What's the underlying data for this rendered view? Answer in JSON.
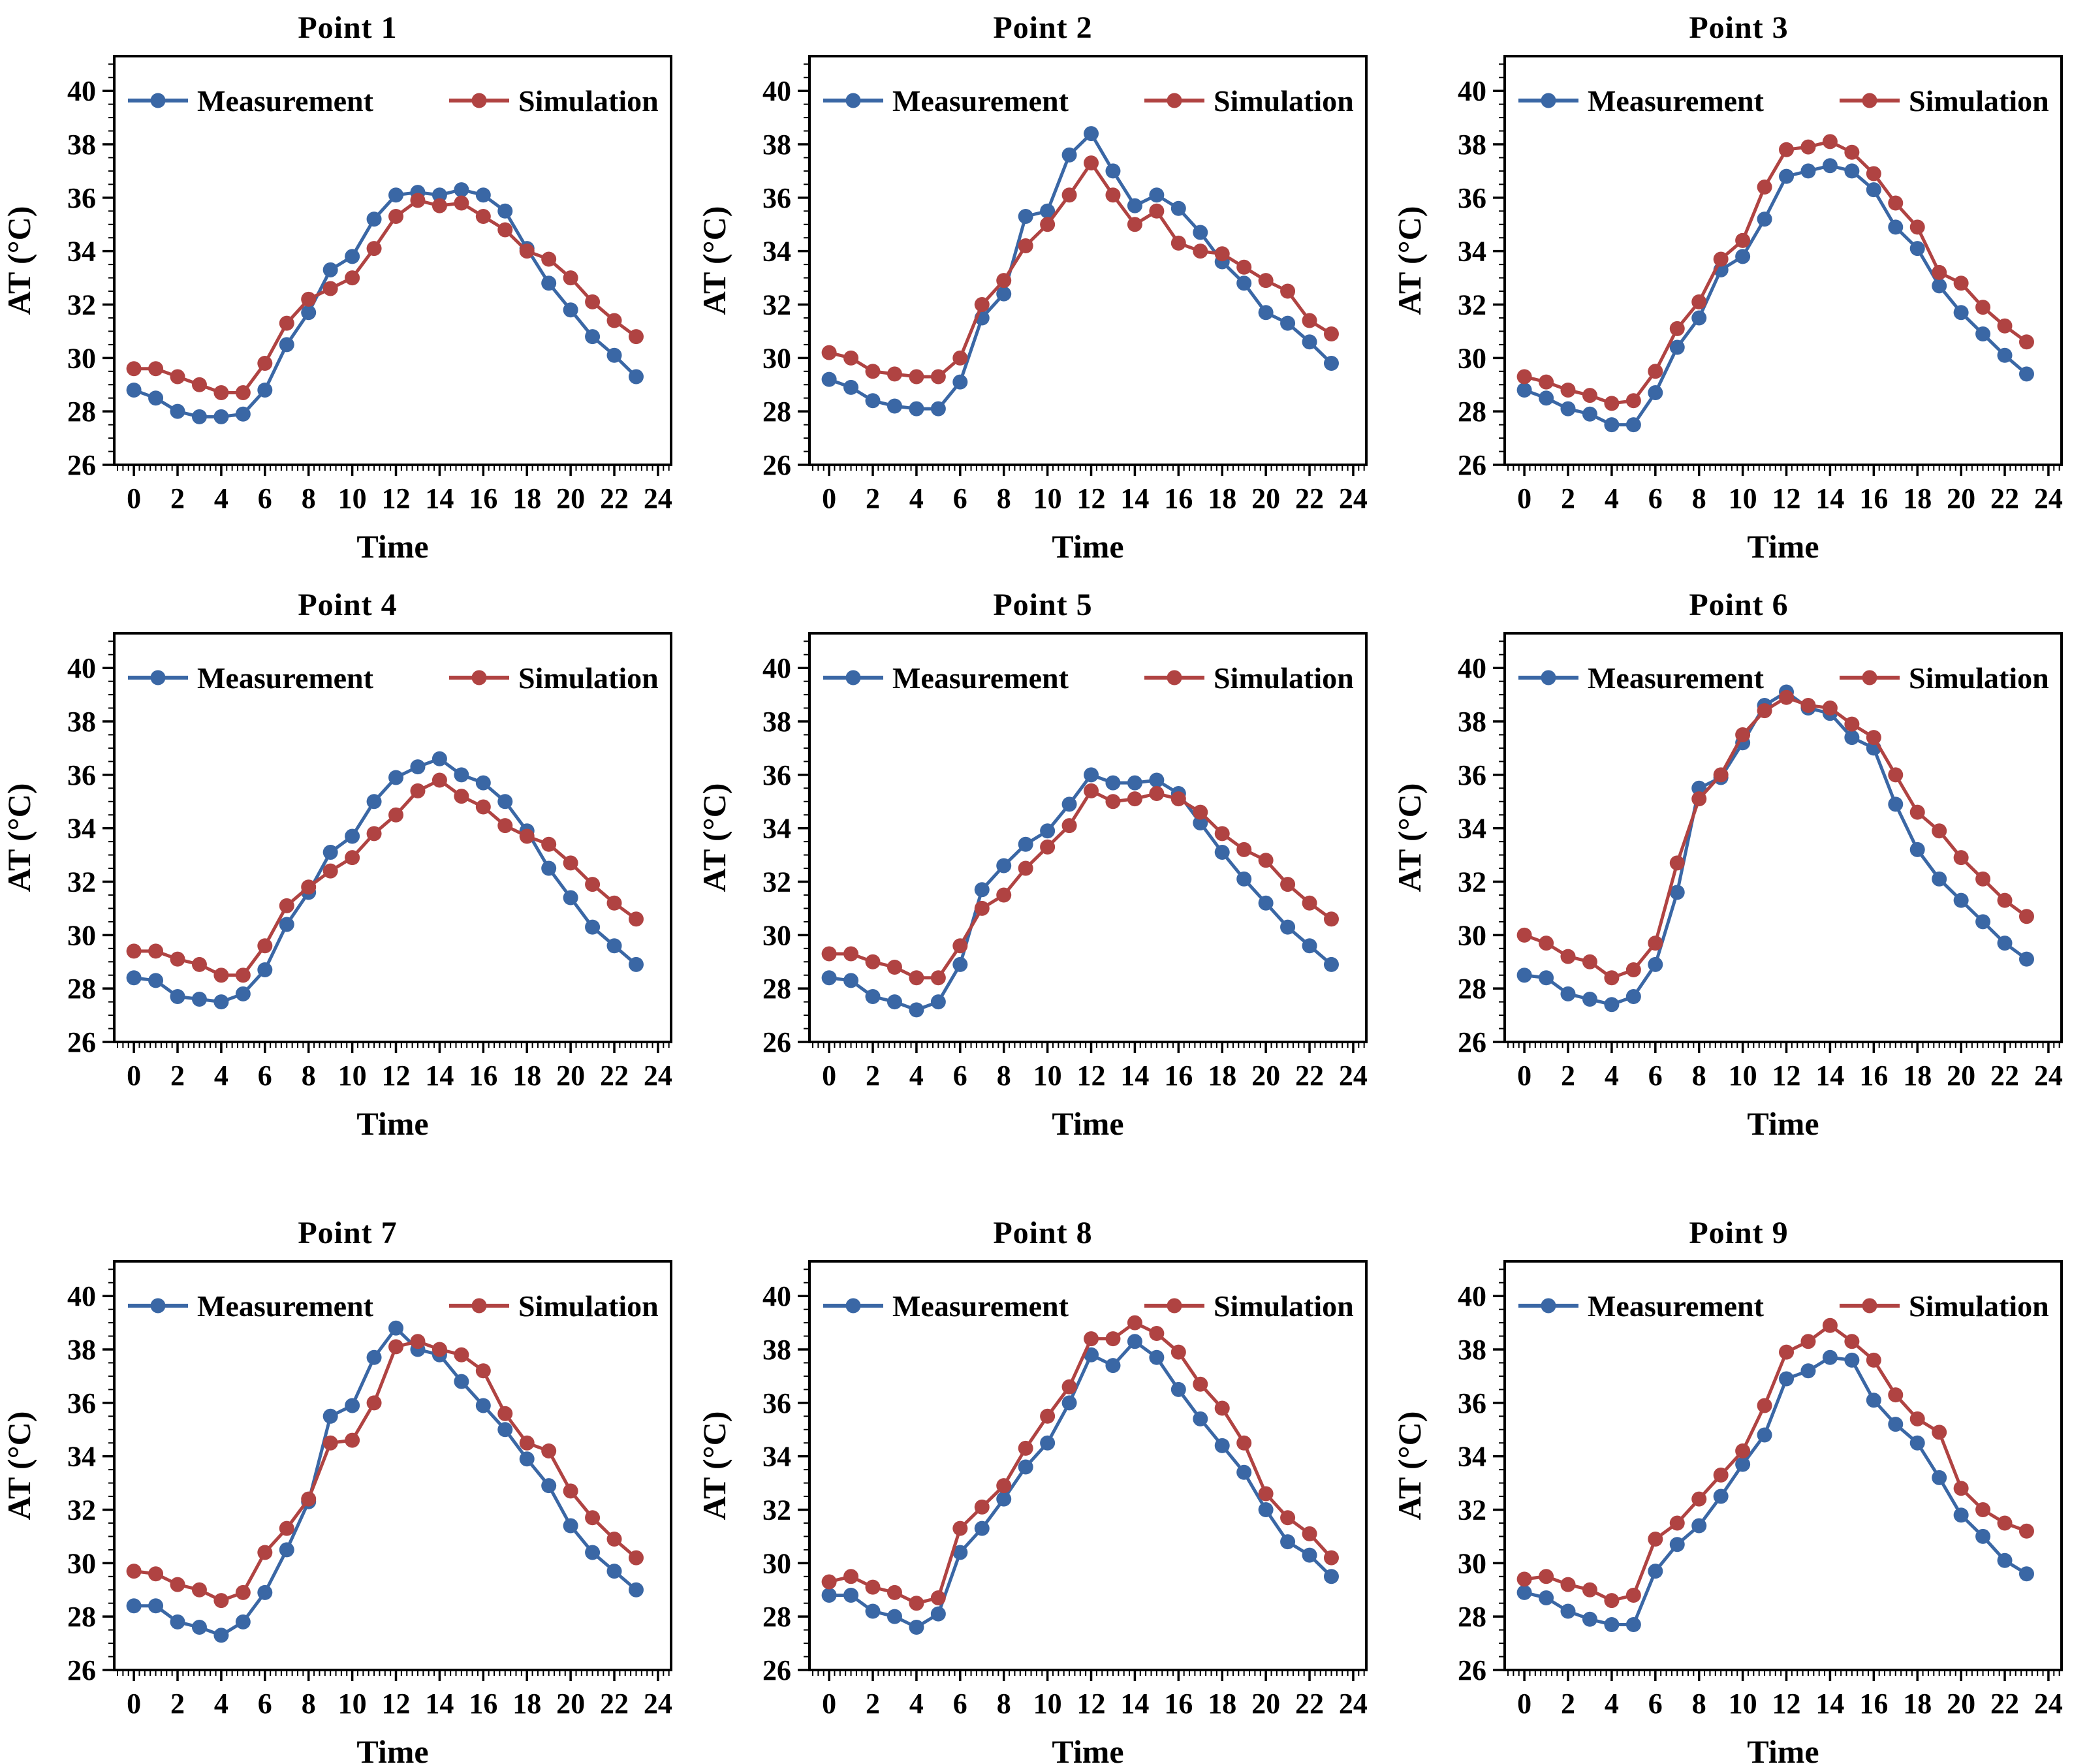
{
  "page": {
    "background": "#ffffff"
  },
  "legend": {
    "items": [
      {
        "label": "Measurement",
        "color": "#3a67a5"
      },
      {
        "label": "Simulation",
        "color": "#b04342"
      }
    ]
  },
  "axes": {
    "xlabel": "Time",
    "ylabel": "AT (°C)",
    "xticks": [
      0,
      2,
      4,
      6,
      8,
      10,
      12,
      14,
      16,
      18,
      20,
      22,
      24
    ],
    "yticks": [
      26,
      28,
      30,
      32,
      34,
      36,
      38,
      40
    ],
    "xlim": [
      -0.9,
      24.6
    ],
    "ylim": [
      26,
      41.3
    ],
    "x_minor_step": 0.25,
    "y_minor_step": 0.5,
    "x_values": [
      0,
      1,
      2,
      3,
      4,
      5,
      6,
      7,
      8,
      9,
      10,
      11,
      12,
      13,
      14,
      15,
      16,
      17,
      18,
      19,
      20,
      21,
      22,
      23
    ],
    "grid": false,
    "legend_position": "top-inside"
  },
  "chart_data": [
    {
      "type": "line",
      "title": "Point 1",
      "xlabel": "Time",
      "ylabel": "AT (°C)",
      "series": [
        {
          "name": "Measurement",
          "color": "#3a67a5",
          "values": [
            28.8,
            28.5,
            28.0,
            27.8,
            27.8,
            27.9,
            28.8,
            30.5,
            31.7,
            33.3,
            33.8,
            35.2,
            36.1,
            36.2,
            36.1,
            36.3,
            36.1,
            35.5,
            34.1,
            32.8,
            31.8,
            30.8,
            30.1,
            29.3
          ]
        },
        {
          "name": "Simulation",
          "color": "#b04342",
          "values": [
            29.6,
            29.6,
            29.3,
            29.0,
            28.7,
            28.7,
            29.8,
            31.3,
            32.2,
            32.6,
            33.0,
            34.1,
            35.3,
            35.9,
            35.7,
            35.8,
            35.3,
            34.8,
            34.0,
            33.7,
            33.0,
            32.1,
            31.4,
            30.8
          ]
        }
      ]
    },
    {
      "type": "line",
      "title": "Point 2",
      "xlabel": "Time",
      "ylabel": "AT (°C)",
      "series": [
        {
          "name": "Measurement",
          "color": "#3a67a5",
          "values": [
            29.2,
            28.9,
            28.4,
            28.2,
            28.1,
            28.1,
            29.1,
            31.5,
            32.4,
            35.3,
            35.5,
            37.6,
            38.4,
            37.0,
            35.7,
            36.1,
            35.6,
            34.7,
            33.6,
            32.8,
            31.7,
            31.3,
            30.6,
            29.8
          ]
        },
        {
          "name": "Simulation",
          "color": "#b04342",
          "values": [
            30.2,
            30.0,
            29.5,
            29.4,
            29.3,
            29.3,
            30.0,
            32.0,
            32.9,
            34.2,
            35.0,
            36.1,
            37.3,
            36.1,
            35.0,
            35.5,
            34.3,
            34.0,
            33.9,
            33.4,
            32.9,
            32.5,
            31.4,
            30.9
          ]
        }
      ]
    },
    {
      "type": "line",
      "title": "Point 3",
      "xlabel": "Time",
      "ylabel": "AT (°C)",
      "series": [
        {
          "name": "Measurement",
          "color": "#3a67a5",
          "values": [
            28.8,
            28.5,
            28.1,
            27.9,
            27.5,
            27.5,
            28.7,
            30.4,
            31.5,
            33.3,
            33.8,
            35.2,
            36.8,
            37.0,
            37.2,
            37.0,
            36.3,
            34.9,
            34.1,
            32.7,
            31.7,
            30.9,
            30.1,
            29.4
          ]
        },
        {
          "name": "Simulation",
          "color": "#b04342",
          "values": [
            29.3,
            29.1,
            28.8,
            28.6,
            28.3,
            28.4,
            29.5,
            31.1,
            32.1,
            33.7,
            34.4,
            36.4,
            37.8,
            37.9,
            38.1,
            37.7,
            36.9,
            35.8,
            34.9,
            33.2,
            32.8,
            31.9,
            31.2,
            30.6
          ]
        }
      ]
    },
    {
      "type": "line",
      "title": "Point 4",
      "xlabel": "Time",
      "ylabel": "AT (°C)",
      "series": [
        {
          "name": "Measurement",
          "color": "#3a67a5",
          "values": [
            28.4,
            28.3,
            27.7,
            27.6,
            27.5,
            27.8,
            28.7,
            30.4,
            31.6,
            33.1,
            33.7,
            35.0,
            35.9,
            36.3,
            36.6,
            36.0,
            35.7,
            35.0,
            33.9,
            32.5,
            31.4,
            30.3,
            29.6,
            28.9
          ]
        },
        {
          "name": "Simulation",
          "color": "#b04342",
          "values": [
            29.4,
            29.4,
            29.1,
            28.9,
            28.5,
            28.5,
            29.6,
            31.1,
            31.8,
            32.4,
            32.9,
            33.8,
            34.5,
            35.4,
            35.8,
            35.2,
            34.8,
            34.1,
            33.7,
            33.4,
            32.7,
            31.9,
            31.2,
            30.6
          ]
        }
      ]
    },
    {
      "type": "line",
      "title": "Point 5",
      "xlabel": "Time",
      "ylabel": "AT (°C)",
      "series": [
        {
          "name": "Measurement",
          "color": "#3a67a5",
          "values": [
            28.4,
            28.3,
            27.7,
            27.5,
            27.2,
            27.5,
            28.9,
            31.7,
            32.6,
            33.4,
            33.9,
            34.9,
            36.0,
            35.7,
            35.7,
            35.8,
            35.3,
            34.2,
            33.1,
            32.1,
            31.2,
            30.3,
            29.6,
            28.9
          ]
        },
        {
          "name": "Simulation",
          "color": "#b04342",
          "values": [
            29.3,
            29.3,
            29.0,
            28.8,
            28.4,
            28.4,
            29.6,
            31.0,
            31.5,
            32.5,
            33.3,
            34.1,
            35.4,
            35.0,
            35.1,
            35.3,
            35.1,
            34.6,
            33.8,
            33.2,
            32.8,
            31.9,
            31.2,
            30.6
          ]
        }
      ]
    },
    {
      "type": "line",
      "title": "Point 6",
      "xlabel": "Time",
      "ylabel": "AT (°C)",
      "series": [
        {
          "name": "Measurement",
          "color": "#3a67a5",
          "values": [
            28.5,
            28.4,
            27.8,
            27.6,
            27.4,
            27.7,
            28.9,
            31.6,
            35.5,
            35.9,
            37.2,
            38.6,
            39.1,
            38.5,
            38.3,
            37.4,
            37.0,
            34.9,
            33.2,
            32.1,
            31.3,
            30.5,
            29.7,
            29.1
          ]
        },
        {
          "name": "Simulation",
          "color": "#b04342",
          "values": [
            30.0,
            29.7,
            29.2,
            29.0,
            28.4,
            28.7,
            29.7,
            32.7,
            35.1,
            36.0,
            37.5,
            38.4,
            38.9,
            38.6,
            38.5,
            37.9,
            37.4,
            36.0,
            34.6,
            33.9,
            32.9,
            32.1,
            31.3,
            30.7
          ]
        }
      ]
    },
    {
      "type": "line",
      "title": "Point 7",
      "xlabel": "Time",
      "ylabel": "AT (°C)",
      "series": [
        {
          "name": "Measurement",
          "color": "#3a67a5",
          "values": [
            28.4,
            28.4,
            27.8,
            27.6,
            27.3,
            27.8,
            28.9,
            30.5,
            32.3,
            35.5,
            35.9,
            37.7,
            38.8,
            38.0,
            37.8,
            36.8,
            35.9,
            35.0,
            33.9,
            32.9,
            31.4,
            30.4,
            29.7,
            29.0
          ]
        },
        {
          "name": "Simulation",
          "color": "#b04342",
          "values": [
            29.7,
            29.6,
            29.2,
            29.0,
            28.6,
            28.9,
            30.4,
            31.3,
            32.4,
            34.5,
            34.6,
            36.0,
            38.1,
            38.3,
            38.0,
            37.8,
            37.2,
            35.6,
            34.5,
            34.2,
            32.7,
            31.7,
            30.9,
            30.2
          ]
        }
      ]
    },
    {
      "type": "line",
      "title": "Point 8",
      "xlabel": "Time",
      "ylabel": "AT (°C)",
      "series": [
        {
          "name": "Measurement",
          "color": "#3a67a5",
          "values": [
            28.8,
            28.8,
            28.2,
            28.0,
            27.6,
            28.1,
            30.4,
            31.3,
            32.4,
            33.6,
            34.5,
            36.0,
            37.8,
            37.4,
            38.3,
            37.7,
            36.5,
            35.4,
            34.4,
            33.4,
            32.0,
            30.8,
            30.3,
            29.5
          ]
        },
        {
          "name": "Simulation",
          "color": "#b04342",
          "values": [
            29.3,
            29.5,
            29.1,
            28.9,
            28.5,
            28.7,
            31.3,
            32.1,
            32.9,
            34.3,
            35.5,
            36.6,
            38.4,
            38.4,
            39.0,
            38.6,
            37.9,
            36.7,
            35.8,
            34.5,
            32.6,
            31.7,
            31.1,
            30.2
          ]
        }
      ]
    },
    {
      "type": "line",
      "title": "Point 9",
      "xlabel": "Time",
      "ylabel": "AT (°C)",
      "series": [
        {
          "name": "Measurement",
          "color": "#3a67a5",
          "values": [
            28.9,
            28.7,
            28.2,
            27.9,
            27.7,
            27.7,
            29.7,
            30.7,
            31.4,
            32.5,
            33.7,
            34.8,
            36.9,
            37.2,
            37.7,
            37.6,
            36.1,
            35.2,
            34.5,
            33.2,
            31.8,
            31.0,
            30.1,
            29.6
          ]
        },
        {
          "name": "Simulation",
          "color": "#b04342",
          "values": [
            29.4,
            29.5,
            29.2,
            29.0,
            28.6,
            28.8,
            30.9,
            31.5,
            32.4,
            33.3,
            34.2,
            35.9,
            37.9,
            38.3,
            38.9,
            38.3,
            37.6,
            36.3,
            35.4,
            34.9,
            32.8,
            32.0,
            31.5,
            31.2
          ]
        }
      ]
    }
  ]
}
